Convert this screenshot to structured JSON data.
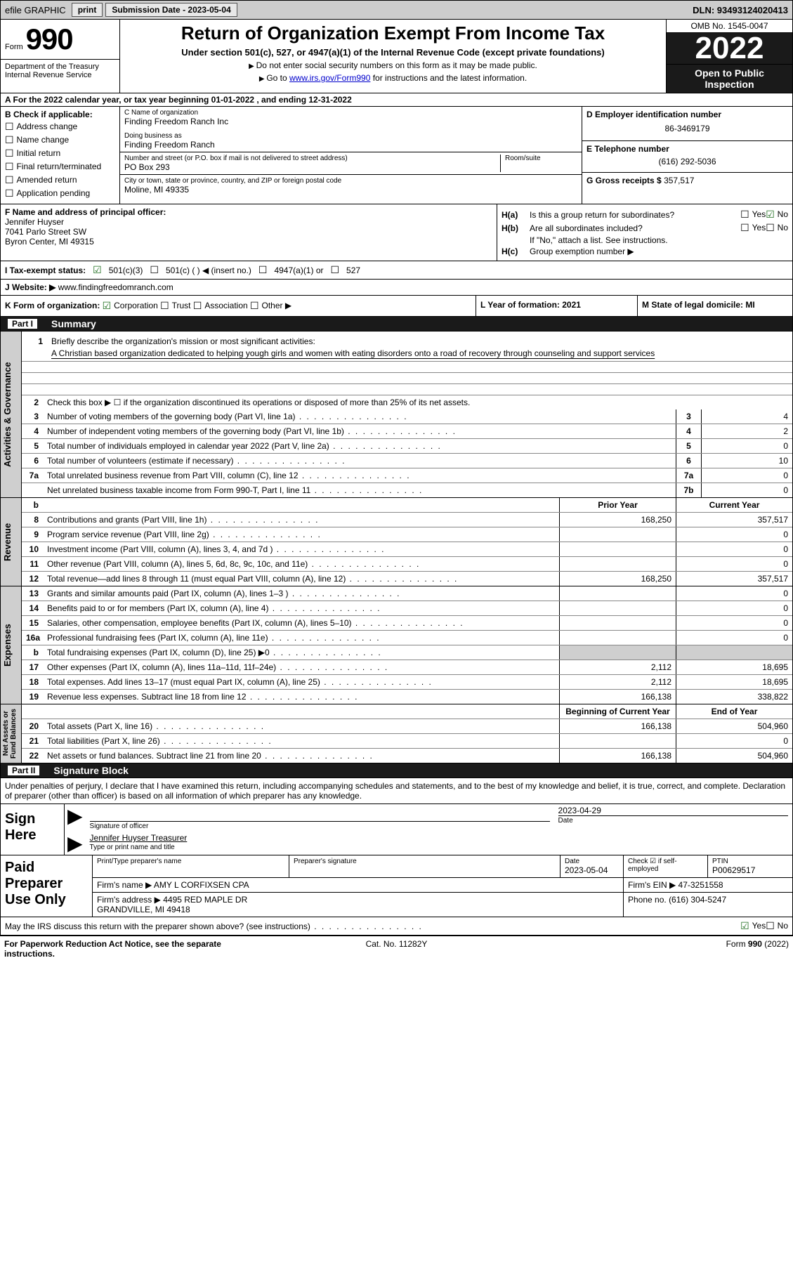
{
  "topbar": {
    "efile": "efile GRAPHIC",
    "print": "print",
    "submission": "Submission Date - 2023-05-04",
    "dln": "DLN: 93493124020413"
  },
  "header": {
    "form_label": "Form",
    "form_number": "990",
    "dept": "Department of the Treasury\nInternal Revenue Service",
    "title": "Return of Organization Exempt From Income Tax",
    "subtitle": "Under section 501(c), 527, or 4947(a)(1) of the Internal Revenue Code (except private foundations)",
    "note1": "Do not enter social security numbers on this form as it may be made public.",
    "note2_pre": "Go to ",
    "note2_link": "www.irs.gov/Form990",
    "note2_post": " for instructions and the latest information.",
    "omb": "OMB No. 1545-0047",
    "year": "2022",
    "inspection": "Open to Public Inspection"
  },
  "section_a": "A  For the 2022 calendar year, or tax year beginning 01-01-2022    , and ending 12-31-2022",
  "col_b": {
    "title": "B Check if applicable:",
    "items": [
      "Address change",
      "Name change",
      "Initial return",
      "Final return/terminated",
      "Amended return",
      "Application pending"
    ]
  },
  "col_c": {
    "name_lbl": "C Name of organization",
    "name": "Finding Freedom Ranch Inc",
    "dba_lbl": "Doing business as",
    "dba": "Finding Freedom Ranch",
    "street_lbl": "Number and street (or P.O. box if mail is not delivered to street address)",
    "room_lbl": "Room/suite",
    "street": "PO Box 293",
    "city_lbl": "City or town, state or province, country, and ZIP or foreign postal code",
    "city": "Moline, MI  49335"
  },
  "col_d": {
    "ein_lbl": "D Employer identification number",
    "ein": "86-3469179",
    "phone_lbl": "E Telephone number",
    "phone": "(616) 292-5036",
    "gross_lbl": "G Gross receipts $ ",
    "gross": "357,517"
  },
  "col_f": {
    "lbl": "F  Name and address of principal officer:",
    "name": "Jennifer Huyser",
    "addr1": "7041 Parlo Street SW",
    "addr2": "Byron Center, MI  49315"
  },
  "col_h": {
    "ha": "Is this a group return for subordinates?",
    "hb": "Are all subordinates included?",
    "hb_note": "If \"No,\" attach a list. See instructions.",
    "hc": "Group exemption number ▶"
  },
  "row_i": {
    "lbl": "I    Tax-exempt status:",
    "o1": "501(c)(3)",
    "o2": "501(c) (  ) ◀ (insert no.)",
    "o3": "4947(a)(1) or",
    "o4": "527"
  },
  "row_j": {
    "lbl": "J    Website: ▶",
    "val": "  www.findingfreedomranch.com"
  },
  "row_k": {
    "k": "K Form of organization:",
    "o": [
      "Corporation",
      "Trust",
      "Association",
      "Other ▶"
    ],
    "l": "L Year of formation: 2021",
    "m": "M State of legal domicile: MI"
  },
  "part1": {
    "num": "Part I",
    "title": "Summary"
  },
  "summary": {
    "s1_lbl": "Briefly describe the organization's mission or most significant activities:",
    "s1_txt": "A Christian based organization dedicated to helping yough girls and women with eating disorders onto a road of recovery through counseling and support services",
    "s2": "Check this box ▶ ☐  if the organization discontinued its operations or disposed of more than 25% of its net assets.",
    "rows_ag": [
      {
        "n": "3",
        "t": "Number of voting members of the governing body (Part VI, line 1a)",
        "b": "3",
        "v": "4"
      },
      {
        "n": "4",
        "t": "Number of independent voting members of the governing body (Part VI, line 1b)",
        "b": "4",
        "v": "2"
      },
      {
        "n": "5",
        "t": "Total number of individuals employed in calendar year 2022 (Part V, line 2a)",
        "b": "5",
        "v": "0"
      },
      {
        "n": "6",
        "t": "Total number of volunteers (estimate if necessary)",
        "b": "6",
        "v": "10"
      },
      {
        "n": "7a",
        "t": "Total unrelated business revenue from Part VIII, column (C), line 12",
        "b": "7a",
        "v": "0"
      },
      {
        "n": "",
        "t": "Net unrelated business taxable income from Form 990-T, Part I, line 11",
        "b": "7b",
        "v": "0"
      }
    ],
    "hdr_b": "b",
    "hdr_prior": "Prior Year",
    "hdr_curr": "Current Year",
    "rows_rev": [
      {
        "n": "8",
        "t": "Contributions and grants (Part VIII, line 1h)",
        "p": "168,250",
        "c": "357,517"
      },
      {
        "n": "9",
        "t": "Program service revenue (Part VIII, line 2g)",
        "p": "",
        "c": "0"
      },
      {
        "n": "10",
        "t": "Investment income (Part VIII, column (A), lines 3, 4, and 7d )",
        "p": "",
        "c": "0"
      },
      {
        "n": "11",
        "t": "Other revenue (Part VIII, column (A), lines 5, 6d, 8c, 9c, 10c, and 11e)",
        "p": "",
        "c": "0"
      },
      {
        "n": "12",
        "t": "Total revenue—add lines 8 through 11 (must equal Part VIII, column (A), line 12)",
        "p": "168,250",
        "c": "357,517"
      }
    ],
    "rows_exp": [
      {
        "n": "13",
        "t": "Grants and similar amounts paid (Part IX, column (A), lines 1–3 )",
        "p": "",
        "c": "0"
      },
      {
        "n": "14",
        "t": "Benefits paid to or for members (Part IX, column (A), line 4)",
        "p": "",
        "c": "0"
      },
      {
        "n": "15",
        "t": "Salaries, other compensation, employee benefits (Part IX, column (A), lines 5–10)",
        "p": "",
        "c": "0"
      },
      {
        "n": "16a",
        "t": "Professional fundraising fees (Part IX, column (A), line 11e)",
        "p": "",
        "c": "0"
      },
      {
        "n": "b",
        "t": "Total fundraising expenses (Part IX, column (D), line 25) ▶0",
        "p": "SHADE",
        "c": "SHADE"
      },
      {
        "n": "17",
        "t": "Other expenses (Part IX, column (A), lines 11a–11d, 11f–24e)",
        "p": "2,112",
        "c": "18,695"
      },
      {
        "n": "18",
        "t": "Total expenses. Add lines 13–17 (must equal Part IX, column (A), line 25)",
        "p": "2,112",
        "c": "18,695"
      },
      {
        "n": "19",
        "t": "Revenue less expenses. Subtract line 18 from line 12",
        "p": "166,138",
        "c": "338,822"
      }
    ],
    "hdr_beg": "Beginning of Current Year",
    "hdr_end": "End of Year",
    "rows_na": [
      {
        "n": "20",
        "t": "Total assets (Part X, line 16)",
        "p": "166,138",
        "c": "504,960"
      },
      {
        "n": "21",
        "t": "Total liabilities (Part X, line 26)",
        "p": "",
        "c": "0"
      },
      {
        "n": "22",
        "t": "Net assets or fund balances. Subtract line 21 from line 20",
        "p": "166,138",
        "c": "504,960"
      }
    ],
    "vtabs": {
      "ag": "Activities & Governance",
      "rev": "Revenue",
      "exp": "Expenses",
      "na": "Net Assets or\nFund Balances"
    }
  },
  "part2": {
    "num": "Part II",
    "title": "Signature Block",
    "decl": "Under penalties of perjury, I declare that I have examined this return, including accompanying schedules and statements, and to the best of my knowledge and belief, it is true, correct, and complete. Declaration of preparer (other than officer) is based on all information of which preparer has any knowledge."
  },
  "sign": {
    "lbl": "Sign Here",
    "sig_lbl": "Signature of officer",
    "date": "2023-04-29",
    "date_lbl": "Date",
    "name": "Jennifer Huyser  Treasurer",
    "name_lbl": "Type or print name and title"
  },
  "prep": {
    "lbl": "Paid Preparer Use Only",
    "h": [
      "Print/Type preparer's name",
      "Preparer's signature",
      "Date",
      "Check ☑  if self-employed",
      "PTIN"
    ],
    "date": "2023-05-04",
    "ptin": "P00629517",
    "firm_lbl": "Firm's name   ▶",
    "firm": "AMY L CORFIXSEN CPA",
    "ein_lbl": "Firm's EIN ▶",
    "ein": "47-3251558",
    "addr_lbl": "Firm's address ▶",
    "addr": "4495 RED MAPLE DR\nGRANDVILLE, MI  49418",
    "ph_lbl": "Phone no.",
    "ph": "(616) 304-5247"
  },
  "discuss": "May the IRS discuss this return with the preparer shown above? (see instructions)",
  "footer": {
    "f1": "For Paperwork Reduction Act Notice, see the separate instructions.",
    "f2": "Cat. No. 11282Y",
    "f3": "Form 990 (2022)"
  }
}
